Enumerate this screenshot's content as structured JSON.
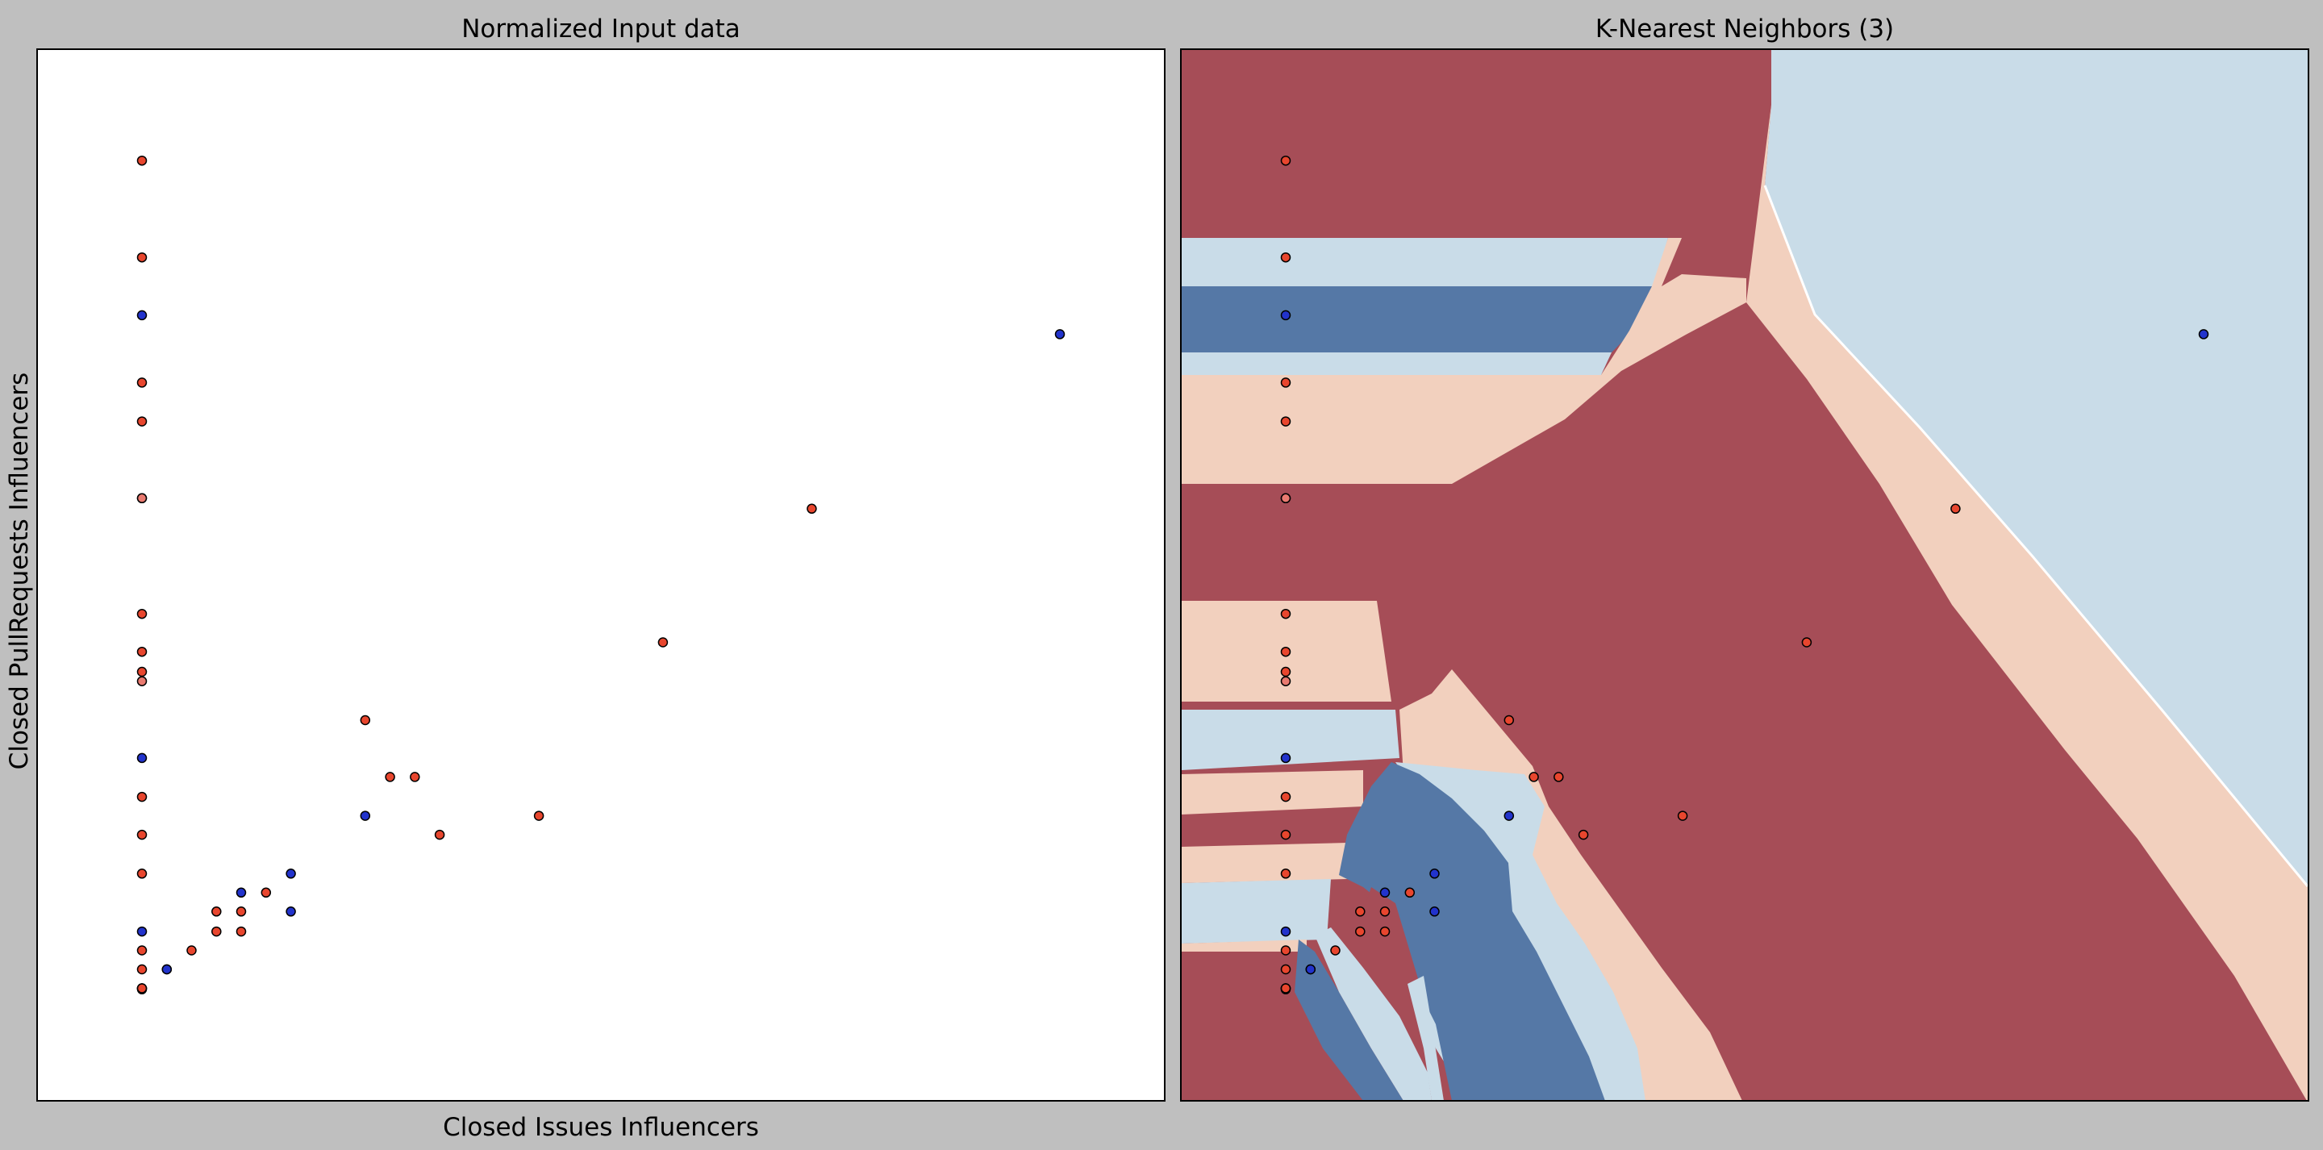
{
  "chart_data": [
    {
      "type": "scatter",
      "title": "Normalized Input data",
      "xlabel": "Closed Issues Influencers",
      "ylabel": "Closed PullRequests Influencers",
      "xlim": [
        0,
        1
      ],
      "ylim": [
        0,
        1
      ],
      "ticks": "hidden",
      "series": [
        {
          "name": "class-red",
          "color": "#e8462e",
          "points": [
            [
              0.093,
              0.894
            ],
            [
              0.093,
              0.802
            ],
            [
              0.093,
              0.683
            ],
            [
              0.093,
              0.646
            ],
            [
              0.093,
              0.573
            ],
            [
              0.093,
              0.463
            ],
            [
              0.093,
              0.427
            ],
            [
              0.093,
              0.408
            ],
            [
              0.093,
              0.289
            ],
            [
              0.093,
              0.253
            ],
            [
              0.093,
              0.216
            ],
            [
              0.093,
              0.143
            ],
            [
              0.093,
              0.125
            ],
            [
              0.093,
              0.107
            ],
            [
              0.093,
              0.107
            ],
            [
              0.093,
              0.106
            ],
            [
              0.093,
              0.107
            ],
            [
              0.115,
              0.125
            ],
            [
              0.137,
              0.143
            ],
            [
              0.159,
              0.161
            ],
            [
              0.159,
              0.18
            ],
            [
              0.181,
              0.18
            ],
            [
              0.181,
              0.161
            ],
            [
              0.203,
              0.198
            ],
            [
              0.291,
              0.362
            ],
            [
              0.313,
              0.308
            ],
            [
              0.335,
              0.308
            ],
            [
              0.357,
              0.253
            ],
            [
              0.445,
              0.271
            ],
            [
              0.555,
              0.436
            ],
            [
              0.687,
              0.563
            ]
          ]
        },
        {
          "name": "class-pink",
          "color": "#e97a70",
          "points": [
            [
              0.093,
              0.573
            ],
            [
              0.093,
              0.399
            ]
          ]
        },
        {
          "name": "class-blue",
          "color": "#2233cc",
          "points": [
            [
              0.093,
              0.747
            ],
            [
              0.093,
              0.326
            ],
            [
              0.093,
              0.161
            ],
            [
              0.115,
              0.125
            ],
            [
              0.181,
              0.198
            ],
            [
              0.225,
              0.216
            ],
            [
              0.225,
              0.18
            ],
            [
              0.291,
              0.271
            ],
            [
              0.907,
              0.729
            ]
          ]
        }
      ]
    },
    {
      "type": "heatmap",
      "title": "K-Nearest Neighbors (3)",
      "xlabel": "",
      "ylabel": "",
      "xlim": [
        0,
        1
      ],
      "ylim": [
        0,
        1
      ],
      "ticks": "hidden",
      "colors": {
        "dark_red": "#a64d57",
        "light_pink": "#f2d0be",
        "light_blue": "#c9dce8",
        "dark_blue": "#5578a6",
        "frame": "#ffffff"
      }
    }
  ]
}
